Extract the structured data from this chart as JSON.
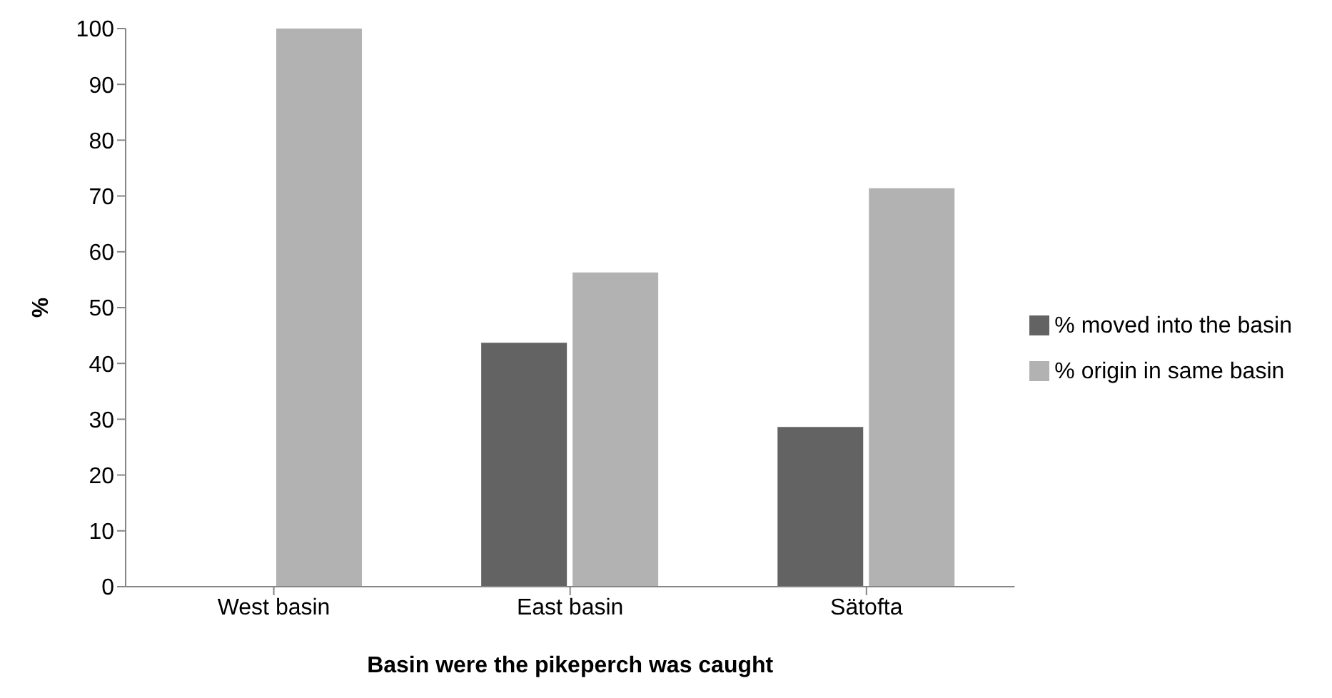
{
  "chart_data": {
    "type": "bar",
    "xlabel": "Basin were the pikeperch was caught",
    "ylabel": "%",
    "categories": [
      "West basin",
      "East basin",
      "Sätofta"
    ],
    "series": [
      {
        "name": "% moved into the basin",
        "color": "#636363",
        "values": [
          0,
          43.7,
          28.6
        ]
      },
      {
        "name": "% origin in same basin",
        "color": "#b2b2b2",
        "values": [
          100,
          56.3,
          71.4
        ]
      }
    ],
    "ylim": [
      0,
      100
    ],
    "yticks": [
      0,
      10,
      20,
      30,
      40,
      50,
      60,
      70,
      80,
      90,
      100
    ],
    "grid": false,
    "legend": "right"
  }
}
